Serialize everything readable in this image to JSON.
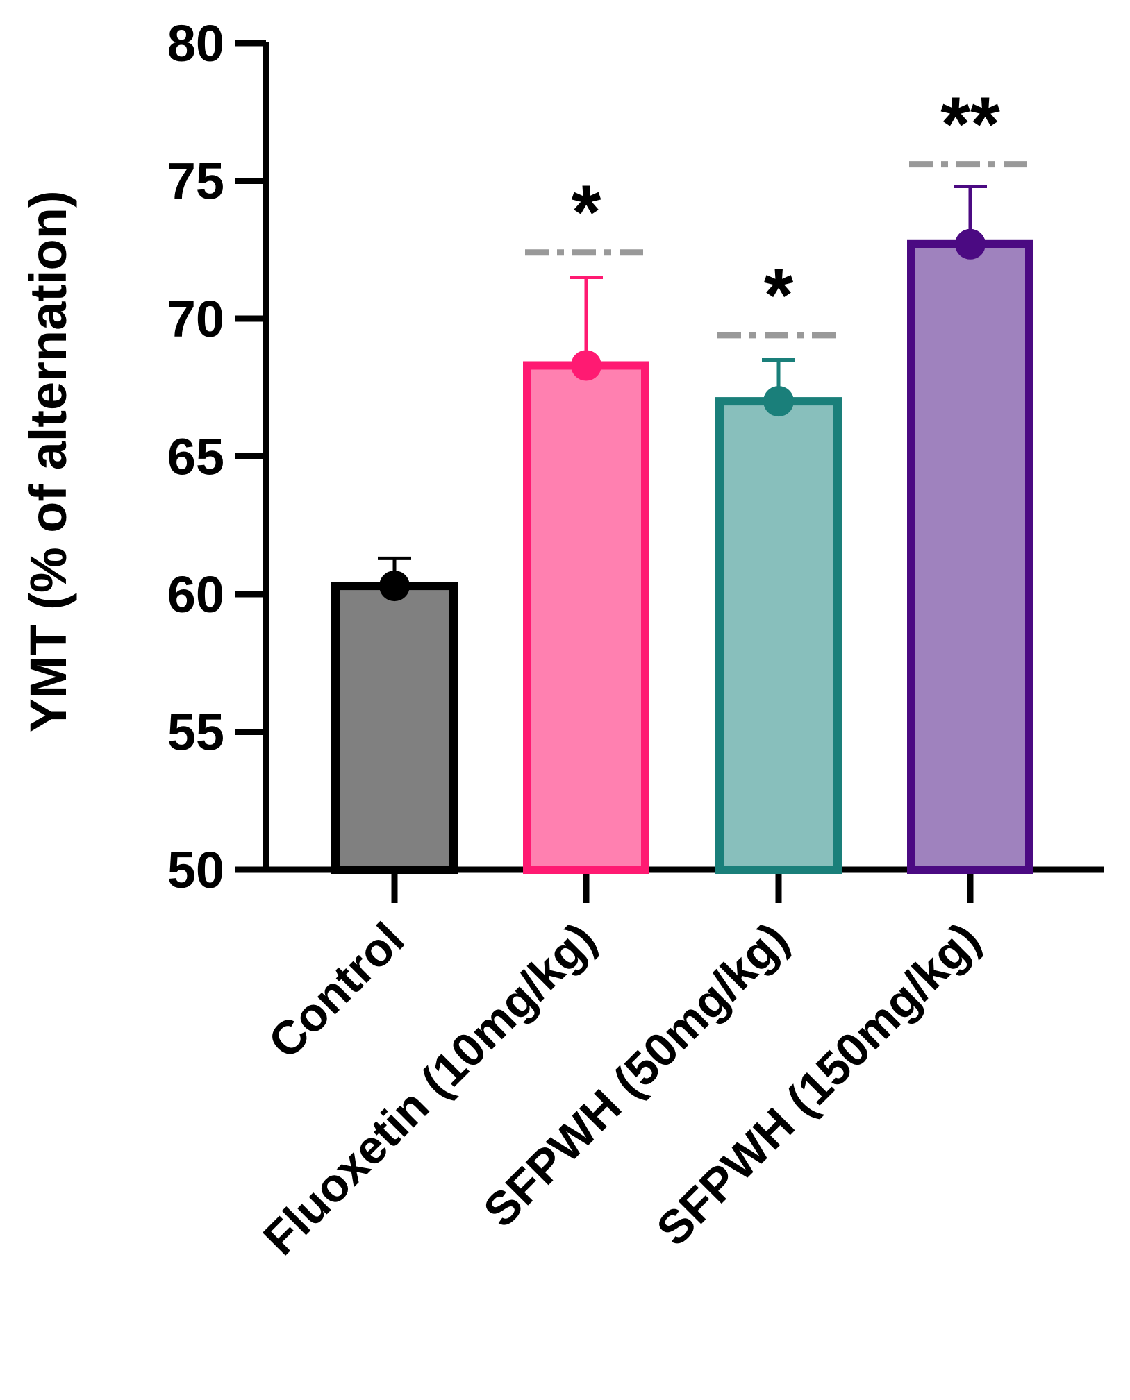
{
  "chart_data": {
    "type": "bar",
    "ylabel": "YMT (% of alternation)",
    "xlabel": "",
    "ylim": [
      50,
      80
    ],
    "yticks": [
      50,
      55,
      60,
      65,
      70,
      75,
      80
    ],
    "yticklabels": [
      "50",
      "55",
      "60",
      "65",
      "70",
      "75",
      "80"
    ],
    "categories": [
      "Control",
      "Fluoxetin (10mg/kg)",
      "SFPWH (50mg/kg)",
      "SFPWH (150mg/kg)"
    ],
    "values": [
      60.3,
      68.3,
      67.0,
      72.7
    ],
    "errors": [
      1.0,
      3.2,
      1.5,
      2.1
    ],
    "significance": [
      "",
      "*",
      "*",
      "**"
    ],
    "significance_line_values": [
      null,
      72.4,
      69.4,
      75.6
    ],
    "colors": {
      "fill": [
        "#808080",
        "#ff80b0",
        "#88bfbc",
        "#9f82be"
      ],
      "stroke": [
        "#000000",
        "#ff1a72",
        "#1a7f7a",
        "#4b0a82"
      ],
      "sig_line": "#999999"
    }
  }
}
